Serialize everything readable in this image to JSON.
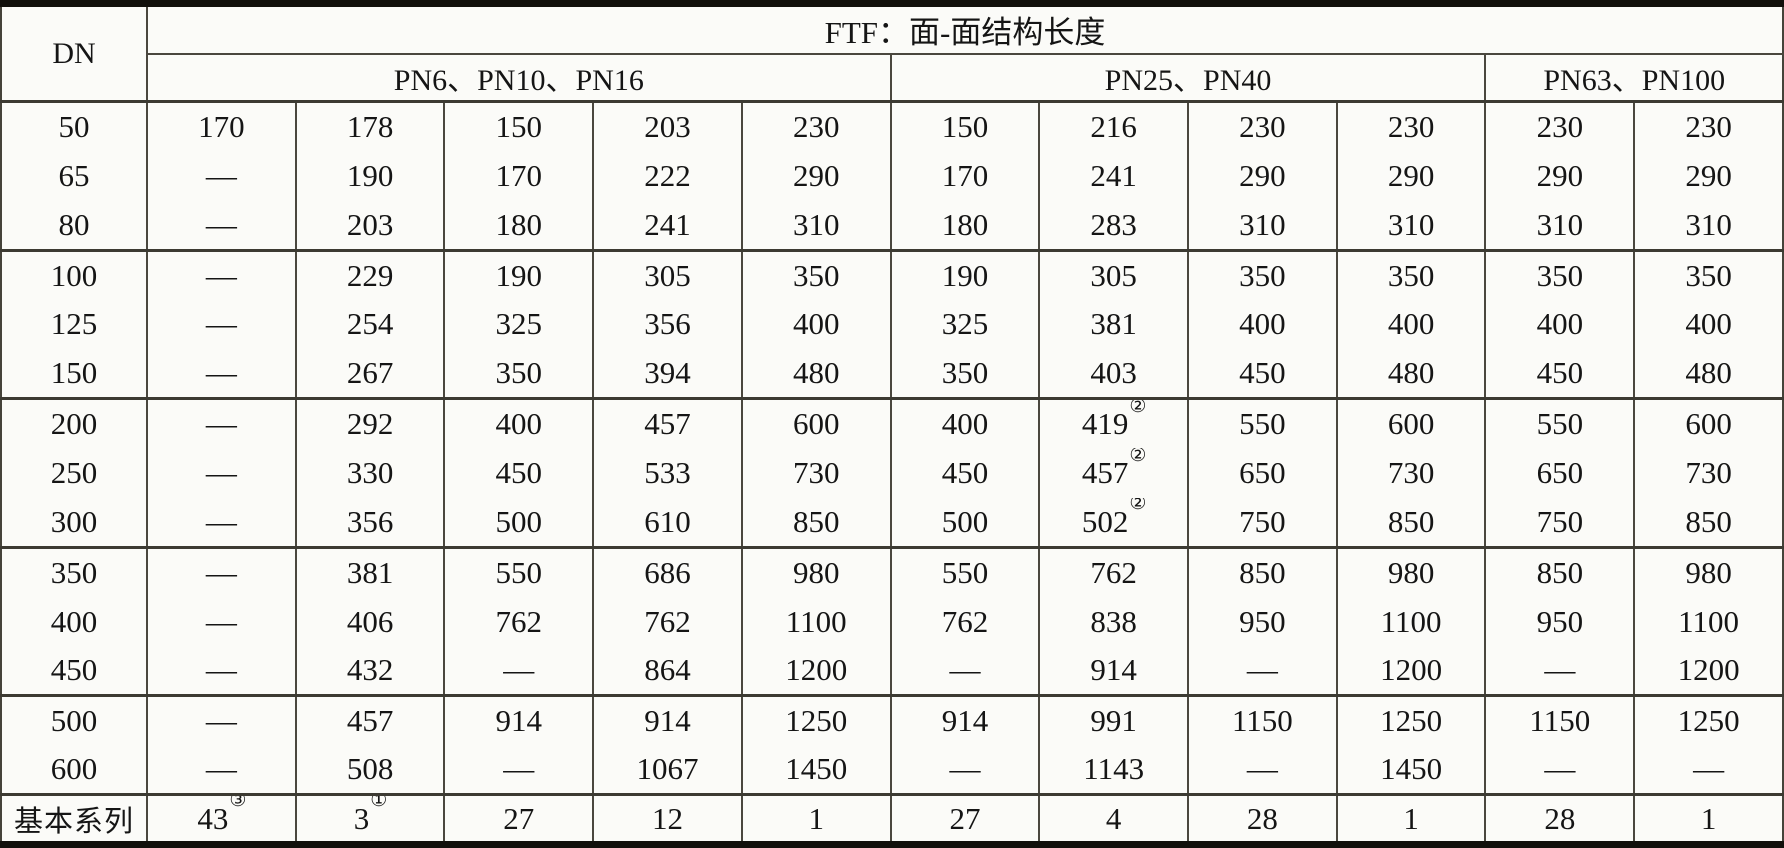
{
  "table": {
    "title": "FTF：面-面结构长度",
    "dn_label": "DN",
    "column_groups": [
      {
        "label": "PN6、PN10、PN16",
        "span": 5
      },
      {
        "label": "PN25、PN40",
        "span": 4
      },
      {
        "label": "PN63、PN100",
        "span": 2
      }
    ],
    "row_groups": [
      {
        "rows": [
          {
            "dn": "50",
            "values": [
              "170",
              "178",
              "150",
              "203",
              "230",
              "150",
              "216",
              "230",
              "230",
              "230",
              "230"
            ]
          },
          {
            "dn": "65",
            "values": [
              "—",
              "190",
              "170",
              "222",
              "290",
              "170",
              "241",
              "290",
              "290",
              "290",
              "290"
            ]
          },
          {
            "dn": "80",
            "values": [
              "—",
              "203",
              "180",
              "241",
              "310",
              "180",
              "283",
              "310",
              "310",
              "310",
              "310"
            ]
          }
        ]
      },
      {
        "rows": [
          {
            "dn": "100",
            "values": [
              "—",
              "229",
              "190",
              "305",
              "350",
              "190",
              "305",
              "350",
              "350",
              "350",
              "350"
            ]
          },
          {
            "dn": "125",
            "values": [
              "—",
              "254",
              "325",
              "356",
              "400",
              "325",
              "381",
              "400",
              "400",
              "400",
              "400"
            ]
          },
          {
            "dn": "150",
            "values": [
              "—",
              "267",
              "350",
              "394",
              "480",
              "350",
              "403",
              "450",
              "480",
              "450",
              "480"
            ]
          }
        ]
      },
      {
        "rows": [
          {
            "dn": "200",
            "values": [
              "—",
              "292",
              "400",
              "457",
              "600",
              "400",
              "419②",
              "550",
              "600",
              "550",
              "600"
            ]
          },
          {
            "dn": "250",
            "values": [
              "—",
              "330",
              "450",
              "533",
              "730",
              "450",
              "457②",
              "650",
              "730",
              "650",
              "730"
            ]
          },
          {
            "dn": "300",
            "values": [
              "—",
              "356",
              "500",
              "610",
              "850",
              "500",
              "502②",
              "750",
              "850",
              "750",
              "850"
            ]
          }
        ]
      },
      {
        "rows": [
          {
            "dn": "350",
            "values": [
              "—",
              "381",
              "550",
              "686",
              "980",
              "550",
              "762",
              "850",
              "980",
              "850",
              "980"
            ]
          },
          {
            "dn": "400",
            "values": [
              "—",
              "406",
              "762",
              "762",
              "1100",
              "762",
              "838",
              "950",
              "1100",
              "950",
              "1100"
            ]
          },
          {
            "dn": "450",
            "values": [
              "—",
              "432",
              "—",
              "864",
              "1200",
              "—",
              "914",
              "—",
              "1200",
              "—",
              "1200"
            ]
          }
        ]
      },
      {
        "rows": [
          {
            "dn": "500",
            "values": [
              "—",
              "457",
              "914",
              "914",
              "1250",
              "914",
              "991",
              "1150",
              "1250",
              "1150",
              "1250"
            ]
          },
          {
            "dn": "600",
            "values": [
              "—",
              "508",
              "—",
              "1067",
              "1450",
              "—",
              "1143",
              "—",
              "1450",
              "—",
              "—"
            ]
          }
        ]
      }
    ],
    "footer": {
      "label": "基本系列",
      "values": [
        "43③",
        "3①",
        "27",
        "12",
        "1",
        "27",
        "4",
        "28",
        "1",
        "28",
        "1"
      ]
    }
  },
  "colors": {
    "background": "#fbfbf8",
    "text": "#151515",
    "grid_line": "#4a473e",
    "outer_border": "#12100c"
  }
}
